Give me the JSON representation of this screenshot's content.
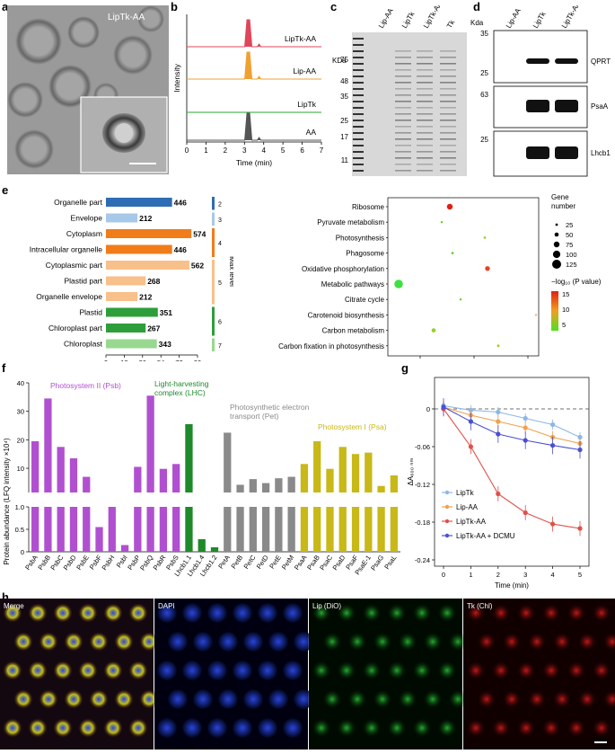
{
  "panel_labels": [
    "a",
    "b",
    "c",
    "d",
    "e",
    "f",
    "g",
    "h"
  ],
  "panel_a": {
    "label": "LipTk-AA"
  },
  "panel_b": {
    "ylabel": "Intensity",
    "xlabel": "Time (min)",
    "xticks": [
      "0",
      "1",
      "2",
      "3",
      "4",
      "5",
      "6",
      "7"
    ],
    "traces": [
      {
        "name": "LipTk-AA",
        "color": "#e0455a",
        "peak": 3.2
      },
      {
        "name": "Lip-AA",
        "color": "#f0a030",
        "peak": 3.2
      },
      {
        "name": "LipTk",
        "color": "#2aa832",
        "peak": null
      },
      {
        "name": "AA",
        "color": "#555555",
        "peak": 3.2
      }
    ]
  },
  "panel_c": {
    "unit": "KDa",
    "markers": [
      "75",
      "48",
      "35",
      "25",
      "17",
      "11"
    ],
    "lanes": [
      "Lip-AA",
      "LipTk",
      "LipTk-AA",
      "Tk"
    ]
  },
  "panel_d": {
    "unit": "Kda",
    "lanes": [
      "Lip-AA",
      "LipTk",
      "LipTk-AA"
    ],
    "blots": [
      {
        "name": "QPRT",
        "markers": [
          "35",
          "25"
        ]
      },
      {
        "name": "PsaA",
        "markers": [
          "63"
        ]
      },
      {
        "name": "Lhcb1",
        "markers": [
          "25"
        ]
      }
    ]
  },
  "panel_e_bar": {
    "xlabel": "Percentage of genes (%)",
    "xticks": [
      "0",
      "18",
      "36",
      "54",
      "72",
      "90"
    ],
    "level_label": "Max level",
    "categories": [
      {
        "name": "Organelle part",
        "value": 446,
        "pct": 65,
        "color": "#2e6db4",
        "level": "2"
      },
      {
        "name": "Envelope",
        "value": 212,
        "pct": 31,
        "color": "#a8c8e8",
        "level": "3"
      },
      {
        "name": "Cytoplasm",
        "value": 574,
        "pct": 84,
        "color": "#f07c1a",
        "level": "4"
      },
      {
        "name": "Intracellular organelle",
        "value": 446,
        "pct": 65,
        "color": "#f07c1a",
        "level": "4"
      },
      {
        "name": "Cytoplasmic part",
        "value": 562,
        "pct": 82,
        "color": "#f8c08a",
        "level": "5"
      },
      {
        "name": "Plastid part",
        "value": 268,
        "pct": 39,
        "color": "#f8c08a",
        "level": "5"
      },
      {
        "name": "Organelle envelope",
        "value": 212,
        "pct": 31,
        "color": "#f8c08a",
        "level": "5"
      },
      {
        "name": "Plastid",
        "value": 351,
        "pct": 51,
        "color": "#2e9e3a",
        "level": "6"
      },
      {
        "name": "Chloroplast part",
        "value": 267,
        "pct": 39,
        "color": "#2e9e3a",
        "level": "6"
      },
      {
        "name": "Chloroplast",
        "value": 343,
        "pct": 50,
        "color": "#98d890",
        "level": "7"
      }
    ],
    "levels": [
      {
        "label": "2",
        "color": "#2e6db4",
        "rows": [
          0,
          0
        ]
      },
      {
        "label": "3",
        "color": "#a8c8e8",
        "rows": [
          1,
          1
        ]
      },
      {
        "label": "4",
        "color": "#f07c1a",
        "rows": [
          2,
          3
        ]
      },
      {
        "label": "5",
        "color": "#f8c08a",
        "rows": [
          4,
          6
        ]
      },
      {
        "label": "6",
        "color": "#2e9e3a",
        "rows": [
          7,
          8
        ]
      },
      {
        "label": "7",
        "color": "#98d890",
        "rows": [
          9,
          9
        ]
      }
    ]
  },
  "panel_e_bubble": {
    "xlabel": "Rich factor",
    "xticks": [
      "0.1",
      "0.2",
      "0.3"
    ],
    "size_title": "Gene number",
    "sizes": [
      "25",
      "50",
      "75",
      "100",
      "125"
    ],
    "color_title": "−log₁₀ (P value)",
    "color_ticks": [
      "15",
      "10",
      "5"
    ],
    "pathways": [
      {
        "name": "Ribosome",
        "x": 0.155,
        "size": 60,
        "color": "#e02010"
      },
      {
        "name": "Pyruvate metabolism",
        "x": 0.14,
        "size": 8,
        "color": "#60d020"
      },
      {
        "name": "Photosynthesis",
        "x": 0.22,
        "size": 10,
        "color": "#90d020"
      },
      {
        "name": "Phagosome",
        "x": 0.16,
        "size": 10,
        "color": "#60d020"
      },
      {
        "name": "Oxidative phosphorylation",
        "x": 0.225,
        "size": 40,
        "color": "#e84020"
      },
      {
        "name": "Metabolic pathways",
        "x": 0.06,
        "size": 130,
        "color": "#40e040"
      },
      {
        "name": "Citrate cycle",
        "x": 0.175,
        "size": 8,
        "color": "#60d020"
      },
      {
        "name": "Carotenoid biosynthesis",
        "x": 0.315,
        "size": 6,
        "color": "#f0b090"
      },
      {
        "name": "Carbon metabolism",
        "x": 0.125,
        "size": 30,
        "color": "#98d020"
      },
      {
        "name": "Carbon fixation in photosynthesis",
        "x": 0.245,
        "size": 12,
        "color": "#a0d020"
      }
    ]
  },
  "chart_data": [
    {
      "type": "bar",
      "id": "f",
      "ylabel": "Protein abundance (LFQ intensity ×10⁴)",
      "yticks_upper": [
        "10",
        "20",
        "30",
        "40"
      ],
      "yticks_lower": [
        "0",
        "0.5",
        "1.0"
      ],
      "groups": [
        {
          "name": "Photosystem II (Psb)",
          "color": "#b050d0"
        },
        {
          "name": "Light-harvesting complex (LHC)",
          "color": "#1e8a2a"
        },
        {
          "name": "Photosynthetic electron transport (Pet)",
          "color": "#8a8a8a"
        },
        {
          "name": "Photosystem I (Psa)",
          "color": "#c8b818"
        }
      ],
      "categories": [
        "PsbA",
        "PsbB",
        "PsbC",
        "PsbD",
        "PsbE",
        "PsbF",
        "PsbH",
        "PsbI",
        "PsbP",
        "PsbQ",
        "PsbR",
        "PsbS",
        "Lhcb1.1",
        "Lhcb1.4",
        "Lhcb1.2",
        "PetA",
        "PetB",
        "PetC",
        "PetD",
        "PetE",
        "PetM",
        "PsaA",
        "PsaB",
        "PsaC",
        "PsaD",
        "PsaF",
        "PsaE-1",
        "PsaG",
        "PsaL"
      ],
      "group_index": [
        0,
        0,
        0,
        0,
        0,
        0,
        0,
        0,
        0,
        0,
        0,
        0,
        1,
        1,
        1,
        2,
        2,
        2,
        2,
        2,
        2,
        3,
        3,
        3,
        3,
        3,
        3,
        3,
        3
      ],
      "values": [
        19.5,
        34.5,
        17.5,
        13.5,
        7.0,
        0.55,
        1.35,
        0.15,
        10.5,
        35.5,
        9.8,
        11.5,
        25.5,
        0.28,
        0.1,
        22.5,
        4.2,
        6.2,
        4.8,
        6.5,
        7.0,
        11.5,
        19.5,
        9.8,
        17.5,
        15.0,
        15.5,
        3.8,
        7.5
      ]
    },
    {
      "type": "line",
      "id": "g",
      "xlabel": "Time (min)",
      "ylabel": "ΔA₆₀₀ ₙₘ",
      "x": [
        0,
        1,
        2,
        3,
        4,
        5
      ],
      "ylim": [
        -0.25,
        0.05
      ],
      "yticks": [
        "0",
        "-0.06",
        "-0.12",
        "-0.18",
        "-0.24"
      ],
      "series": [
        {
          "name": "LipTk",
          "color": "#8ab8e8",
          "values": [
            0.005,
            -0.002,
            -0.005,
            -0.015,
            -0.025,
            -0.045
          ]
        },
        {
          "name": "Lip-AA",
          "color": "#f0a050",
          "values": [
            0.003,
            -0.01,
            -0.02,
            -0.03,
            -0.045,
            -0.055
          ]
        },
        {
          "name": "LipTk-AA",
          "color": "#e0504a",
          "values": [
            0.0,
            -0.06,
            -0.135,
            -0.165,
            -0.183,
            -0.19
          ]
        },
        {
          "name": "LipTk-AA + DCMU",
          "color": "#4a50d0",
          "values": [
            0.003,
            -0.02,
            -0.04,
            -0.05,
            -0.058,
            -0.065
          ]
        }
      ]
    }
  ],
  "panel_h": {
    "panels": [
      {
        "label": "Merge",
        "tint": "merge"
      },
      {
        "label": "DAPI",
        "tint": "blue"
      },
      {
        "label": "Lip (DiO)",
        "tint": "green"
      },
      {
        "label": "Tk (Chl)",
        "tint": "red"
      }
    ]
  }
}
